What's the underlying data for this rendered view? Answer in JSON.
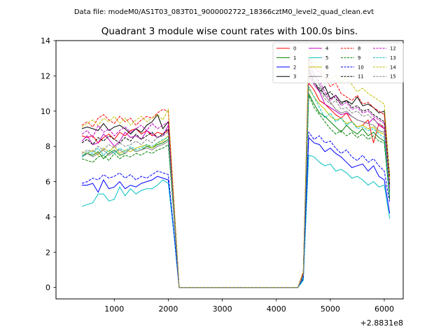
{
  "chart_data": {
    "type": "line",
    "suptitle": "Data file: modeM0/AS1T03_083T01_9000002722_18366cztM0_level2_quad_clean.evt",
    "title": "Quadrant 3 module wise count rates with 100.0s bins.",
    "xlabel": "",
    "ylabel": "",
    "x_offset_label": "+2.8831e8",
    "xlim": [
      -80,
      6350
    ],
    "ylim": [
      -0.65,
      14.0
    ],
    "xticks": [
      1000,
      2000,
      3000,
      4000,
      5000,
      6000
    ],
    "xtick_labels": [
      "1000",
      "2000",
      "3000",
      "4000",
      "5000",
      "6000"
    ],
    "yticks": [
      0,
      2,
      4,
      6,
      8,
      10,
      12,
      14
    ],
    "ytick_labels": [
      "0",
      "2",
      "4",
      "6",
      "8",
      "10",
      "12",
      "14"
    ],
    "legend_position": "top-right",
    "x": [
      400,
      500,
      600,
      700,
      800,
      900,
      1000,
      1100,
      1200,
      1300,
      1400,
      1500,
      1600,
      1700,
      1800,
      1900,
      2000,
      2100,
      2200,
      2300,
      4400,
      4500,
      4600,
      4700,
      4800,
      4900,
      5000,
      5100,
      5200,
      5300,
      5400,
      5500,
      5600,
      5700,
      5800,
      5900,
      6000,
      6100
    ],
    "series": [
      {
        "name": "0",
        "color": "#ff0000",
        "dash": "solid",
        "values": [
          8.6,
          8.5,
          8.6,
          8.2,
          8.5,
          8.7,
          8.4,
          8.8,
          8.6,
          8.9,
          9.0,
          8.7,
          8.9,
          8.6,
          8.8,
          8.7,
          8.9,
          4.5,
          0,
          0,
          0,
          0.7,
          11.6,
          11.2,
          10.6,
          10.4,
          10.1,
          9.8,
          9.6,
          9.9,
          9.4,
          9.1,
          9.2,
          9.5,
          8.2,
          9.3,
          9.0,
          5.5
        ]
      },
      {
        "name": "1",
        "color": "#008000",
        "dash": "solid",
        "values": [
          7.4,
          7.6,
          7.5,
          7.7,
          7.3,
          7.6,
          7.8,
          7.5,
          7.6,
          7.9,
          7.7,
          7.8,
          8.0,
          7.9,
          8.1,
          8.2,
          8.4,
          4.3,
          0,
          0,
          0,
          0.6,
          11.0,
          10.4,
          9.9,
          9.7,
          9.4,
          9.1,
          8.8,
          9.2,
          8.9,
          8.7,
          9.0,
          8.6,
          8.8,
          8.5,
          8.3,
          5.0
        ]
      },
      {
        "name": "2",
        "color": "#0000ff",
        "dash": "solid",
        "values": [
          5.8,
          5.8,
          5.9,
          5.4,
          6.1,
          5.6,
          5.7,
          6.0,
          5.6,
          5.8,
          5.7,
          5.9,
          6.0,
          6.1,
          6.3,
          6.2,
          6.1,
          3.2,
          0,
          0,
          0,
          0.5,
          8.5,
          8.2,
          8.1,
          7.7,
          7.9,
          7.6,
          7.4,
          7.1,
          6.8,
          6.9,
          7.0,
          6.6,
          6.9,
          6.3,
          6.1,
          4.2
        ]
      },
      {
        "name": "3",
        "color": "#000000",
        "dash": "solid",
        "values": [
          9.0,
          9.1,
          9.0,
          8.9,
          9.3,
          8.9,
          9.1,
          9.2,
          9.0,
          8.7,
          9.0,
          8.8,
          9.2,
          9.4,
          9.8,
          9.0,
          9.4,
          4.9,
          0,
          0,
          0,
          0.8,
          12.4,
          11.7,
          11.1,
          11.4,
          10.7,
          10.9,
          10.5,
          10.6,
          10.4,
          10.8,
          10.3,
          10.4,
          10.2,
          9.9,
          10.0,
          6.3
        ]
      },
      {
        "name": "4",
        "color": "#c000c0",
        "dash": "solid",
        "values": [
          8.3,
          8.6,
          8.1,
          8.2,
          8.7,
          8.4,
          8.0,
          8.3,
          8.8,
          8.5,
          8.6,
          8.4,
          8.9,
          8.7,
          8.5,
          8.6,
          9.2,
          4.7,
          0,
          0,
          0,
          0.7,
          12.0,
          11.5,
          11.1,
          10.4,
          10.2,
          10.0,
          9.8,
          9.9,
          9.7,
          9.5,
          9.4,
          9.3,
          9.6,
          9.2,
          9.0,
          5.7
        ]
      },
      {
        "name": "5",
        "color": "#00c0c0",
        "dash": "solid",
        "values": [
          4.6,
          4.7,
          4.8,
          5.3,
          5.3,
          4.9,
          5.0,
          5.7,
          5.2,
          5.6,
          5.3,
          5.5,
          5.6,
          5.6,
          5.8,
          6.1,
          5.9,
          3.1,
          0,
          0,
          0,
          0.4,
          7.5,
          7.4,
          7.1,
          6.9,
          7.0,
          6.6,
          6.7,
          6.5,
          6.2,
          6.3,
          6.1,
          5.8,
          6.0,
          5.7,
          5.8,
          3.9
        ]
      },
      {
        "name": "6",
        "color": "#c0c000",
        "dash": "solid",
        "values": [
          7.7,
          7.6,
          7.8,
          7.5,
          7.9,
          7.7,
          8.0,
          7.6,
          7.8,
          7.7,
          7.9,
          8.0,
          8.1,
          7.9,
          8.2,
          8.3,
          8.6,
          4.4,
          0,
          0,
          0,
          0.6,
          11.3,
          10.8,
          10.4,
          10.1,
          9.7,
          9.5,
          9.6,
          9.3,
          9.4,
          9.1,
          9.2,
          9.0,
          9.1,
          8.8,
          8.7,
          5.3
        ]
      },
      {
        "name": "7",
        "color": "#808080",
        "dash": "solid",
        "values": [
          7.5,
          7.6,
          7.4,
          7.6,
          7.8,
          7.5,
          7.7,
          7.8,
          7.6,
          7.9,
          7.7,
          7.8,
          7.9,
          7.8,
          8.0,
          8.1,
          8.3,
          4.3,
          0,
          0,
          0,
          0.6,
          12.9,
          12.1,
          11.5,
          10.9,
          10.5,
          10.1,
          9.9,
          10.0,
          9.7,
          9.5,
          9.4,
          9.3,
          9.2,
          8.9,
          8.8,
          5.4
        ]
      },
      {
        "name": "8",
        "color": "#ff0000",
        "dash": "dashed",
        "values": [
          9.2,
          9.4,
          9.1,
          9.6,
          9.8,
          9.5,
          9.3,
          9.7,
          9.4,
          9.6,
          9.2,
          9.5,
          9.7,
          9.6,
          9.9,
          10.1,
          10.0,
          5.0,
          0,
          0,
          0,
          0.9,
          13.0,
          12.5,
          12.2,
          11.9,
          11.4,
          11.6,
          11.0,
          10.8,
          10.6,
          10.9,
          10.4,
          10.5,
          10.2,
          10.0,
          9.8,
          5.9
        ]
      },
      {
        "name": "9",
        "color": "#008000",
        "dash": "dashed",
        "values": [
          7.3,
          7.2,
          7.1,
          7.4,
          7.5,
          7.2,
          7.6,
          7.3,
          7.5,
          7.4,
          7.6,
          7.5,
          7.7,
          7.6,
          7.8,
          7.9,
          8.1,
          4.2,
          0,
          0,
          0,
          0.6,
          10.9,
          10.2,
          9.8,
          9.4,
          9.0,
          8.7,
          8.9,
          8.6,
          8.8,
          8.5,
          8.7,
          8.4,
          8.6,
          8.3,
          8.2,
          5.1
        ]
      },
      {
        "name": "10",
        "color": "#0000ff",
        "dash": "dashed",
        "values": [
          5.9,
          6.0,
          6.2,
          6.1,
          6.4,
          6.2,
          6.3,
          6.5,
          6.2,
          6.4,
          6.1,
          6.3,
          6.2,
          6.4,
          6.6,
          6.5,
          6.4,
          3.3,
          0,
          0,
          0,
          0.5,
          8.8,
          8.4,
          8.6,
          8.2,
          8.3,
          7.9,
          7.6,
          7.8,
          7.4,
          7.2,
          7.5,
          7.1,
          7.3,
          6.9,
          6.6,
          4.8
        ]
      },
      {
        "name": "11",
        "color": "#000000",
        "dash": "dashed",
        "values": [
          8.2,
          8.4,
          8.1,
          8.5,
          8.3,
          8.6,
          8.4,
          8.2,
          8.5,
          8.3,
          8.7,
          8.4,
          8.6,
          8.8,
          8.5,
          8.7,
          9.0,
          4.6,
          0,
          0,
          0,
          0.7,
          12.2,
          11.6,
          11.3,
          10.9,
          11.1,
          10.7,
          10.4,
          10.6,
          10.2,
          10.3,
          10.0,
          10.1,
          9.8,
          9.6,
          9.4,
          5.8
        ]
      },
      {
        "name": "12",
        "color": "#c000c0",
        "dash": "dashed",
        "values": [
          8.7,
          8.9,
          8.5,
          9.2,
          8.8,
          9.0,
          8.6,
          8.9,
          9.1,
          8.8,
          9.0,
          9.2,
          8.9,
          9.3,
          9.0,
          9.2,
          9.4,
          4.8,
          0,
          0,
          0,
          0.8,
          12.6,
          12.0,
          11.7,
          11.1,
          10.6,
          10.9,
          10.3,
          10.5,
          10.1,
          10.2,
          9.9,
          10.0,
          9.7,
          9.5,
          9.3,
          5.6
        ]
      },
      {
        "name": "13",
        "color": "#00c0c0",
        "dash": "dashed",
        "values": [
          7.4,
          7.7,
          7.6,
          7.9,
          7.5,
          7.8,
          7.6,
          7.9,
          7.7,
          8.0,
          7.8,
          7.9,
          8.1,
          8.0,
          8.2,
          8.4,
          8.5,
          4.4,
          0,
          0,
          0,
          0.6,
          11.4,
          10.8,
          10.2,
          9.6,
          9.9,
          9.4,
          9.6,
          9.2,
          9.4,
          9.0,
          9.1,
          8.9,
          9.0,
          8.7,
          8.5,
          5.2
        ]
      },
      {
        "name": "14",
        "color": "#c0c000",
        "dash": "dashed",
        "values": [
          9.1,
          9.3,
          9.5,
          9.2,
          9.6,
          9.4,
          9.7,
          9.3,
          9.6,
          9.2,
          9.5,
          9.7,
          9.4,
          9.6,
          9.8,
          9.5,
          10.1,
          5.1,
          0,
          0,
          0,
          0.9,
          13.4,
          12.8,
          12.4,
          12.1,
          11.8,
          12.0,
          11.6,
          11.9,
          11.5,
          11.1,
          11.3,
          11.0,
          10.8,
          10.6,
          10.4,
          6.2
        ]
      },
      {
        "name": "15",
        "color": "#808080",
        "dash": "dashed",
        "values": [
          7.6,
          7.8,
          7.7,
          8.0,
          7.8,
          8.1,
          7.9,
          8.2,
          8.0,
          8.1,
          8.3,
          8.1,
          8.4,
          8.2,
          8.5,
          8.6,
          8.8,
          4.5,
          0,
          0,
          0,
          0.7,
          12.3,
          11.7,
          11.2,
          10.7,
          10.4,
          10.6,
          10.1,
          10.2,
          9.9,
          10.0,
          9.7,
          9.8,
          9.5,
          9.3,
          9.1,
          5.5
        ]
      }
    ]
  }
}
